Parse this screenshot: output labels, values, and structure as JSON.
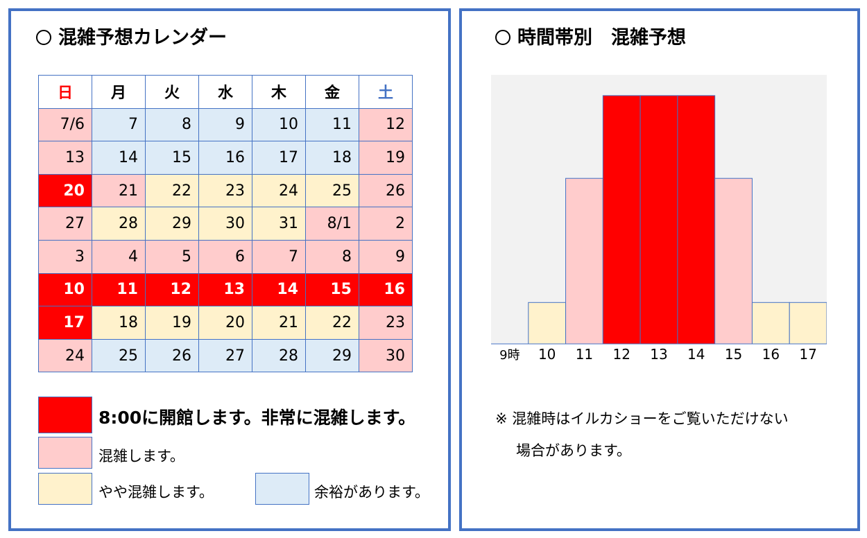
{
  "calendar": {
    "title": "混雑予想カレンダー",
    "weekdays": [
      "日",
      "月",
      "火",
      "水",
      "木",
      "金",
      "土"
    ],
    "weeks": [
      [
        {
          "d": "7/6",
          "lv": "p"
        },
        {
          "d": "7",
          "lv": "b"
        },
        {
          "d": "8",
          "lv": "b"
        },
        {
          "d": "9",
          "lv": "b"
        },
        {
          "d": "10",
          "lv": "b"
        },
        {
          "d": "11",
          "lv": "b"
        },
        {
          "d": "12",
          "lv": "p"
        }
      ],
      [
        {
          "d": "13",
          "lv": "p"
        },
        {
          "d": "14",
          "lv": "b"
        },
        {
          "d": "15",
          "lv": "b"
        },
        {
          "d": "16",
          "lv": "b"
        },
        {
          "d": "17",
          "lv": "b"
        },
        {
          "d": "18",
          "lv": "b"
        },
        {
          "d": "19",
          "lv": "p"
        }
      ],
      [
        {
          "d": "20",
          "lv": "r"
        },
        {
          "d": "21",
          "lv": "p"
        },
        {
          "d": "22",
          "lv": "y"
        },
        {
          "d": "23",
          "lv": "y"
        },
        {
          "d": "24",
          "lv": "y"
        },
        {
          "d": "25",
          "lv": "y"
        },
        {
          "d": "26",
          "lv": "p"
        }
      ],
      [
        {
          "d": "27",
          "lv": "p"
        },
        {
          "d": "28",
          "lv": "y"
        },
        {
          "d": "29",
          "lv": "y"
        },
        {
          "d": "30",
          "lv": "y"
        },
        {
          "d": "31",
          "lv": "y"
        },
        {
          "d": "8/1",
          "lv": "p"
        },
        {
          "d": "2",
          "lv": "p"
        }
      ],
      [
        {
          "d": "3",
          "lv": "p"
        },
        {
          "d": "4",
          "lv": "p"
        },
        {
          "d": "5",
          "lv": "p"
        },
        {
          "d": "6",
          "lv": "p"
        },
        {
          "d": "7",
          "lv": "p"
        },
        {
          "d": "8",
          "lv": "p"
        },
        {
          "d": "9",
          "lv": "p"
        }
      ],
      [
        {
          "d": "10",
          "lv": "r"
        },
        {
          "d": "11",
          "lv": "r"
        },
        {
          "d": "12",
          "lv": "r"
        },
        {
          "d": "13",
          "lv": "r"
        },
        {
          "d": "14",
          "lv": "r"
        },
        {
          "d": "15",
          "lv": "r"
        },
        {
          "d": "16",
          "lv": "r"
        }
      ],
      [
        {
          "d": "17",
          "lv": "r"
        },
        {
          "d": "18",
          "lv": "y"
        },
        {
          "d": "19",
          "lv": "y"
        },
        {
          "d": "20",
          "lv": "y"
        },
        {
          "d": "21",
          "lv": "y"
        },
        {
          "d": "22",
          "lv": "y"
        },
        {
          "d": "23",
          "lv": "p"
        }
      ],
      [
        {
          "d": "24",
          "lv": "p"
        },
        {
          "d": "25",
          "lv": "b"
        },
        {
          "d": "26",
          "lv": "b"
        },
        {
          "d": "27",
          "lv": "b"
        },
        {
          "d": "28",
          "lv": "b"
        },
        {
          "d": "29",
          "lv": "b"
        },
        {
          "d": "30",
          "lv": "p"
        }
      ]
    ]
  },
  "legend": {
    "red": "8:00に開館します。非常に混雑します。",
    "pink": "混雑します。",
    "yellow": "やや混雑します。",
    "blue": "余裕があります。"
  },
  "colors": {
    "red": "#ff0000",
    "pink": "#ffcccc",
    "yellow": "#fff2cc",
    "blue": "#ddebf7",
    "border": "#4472c4",
    "plot_bg": "#f2f2f2"
  },
  "hourly": {
    "title": "時間帯別　混雑予想",
    "note_line1": "※ 混雑時はイルカショーをご覧いただけない",
    "note_line2": "場合があります。"
  },
  "chart_data": {
    "type": "bar",
    "title": "時間帯別　混雑予想",
    "categories": [
      "9時",
      "10",
      "11",
      "12",
      "13",
      "14",
      "15",
      "16",
      "17"
    ],
    "values": [
      0,
      1,
      4,
      6,
      6,
      6,
      4,
      1,
      1
    ],
    "levels": [
      "none",
      "yellow",
      "pink",
      "red",
      "red",
      "red",
      "pink",
      "yellow",
      "yellow"
    ],
    "ylim": [
      0,
      6.5
    ],
    "grid": false,
    "legend": "none"
  }
}
